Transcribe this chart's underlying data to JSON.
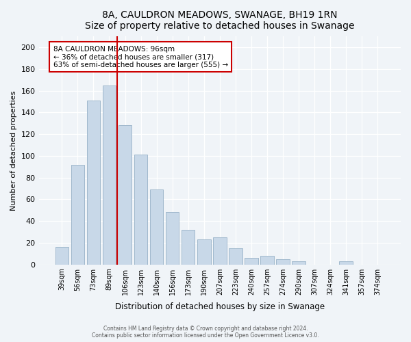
{
  "title": "8A, CAULDRON MEADOWS, SWANAGE, BH19 1RN",
  "subtitle": "Size of property relative to detached houses in Swanage",
  "xlabel": "Distribution of detached houses by size in Swanage",
  "ylabel": "Number of detached properties",
  "bar_labels": [
    "39sqm",
    "56sqm",
    "73sqm",
    "89sqm",
    "106sqm",
    "123sqm",
    "140sqm",
    "156sqm",
    "173sqm",
    "190sqm",
    "207sqm",
    "223sqm",
    "240sqm",
    "257sqm",
    "274sqm",
    "290sqm",
    "307sqm",
    "324sqm",
    "341sqm",
    "357sqm",
    "374sqm"
  ],
  "bar_values": [
    16,
    92,
    151,
    165,
    128,
    101,
    69,
    48,
    32,
    23,
    25,
    15,
    6,
    8,
    5,
    3,
    0,
    0,
    3,
    0,
    0
  ],
  "bar_color": "#c8d8e8",
  "bar_edge_color": "#a0b8cc",
  "vline_color": "#cc0000",
  "vline_x": 3.5,
  "annotation_title": "8A CAULDRON MEADOWS: 96sqm",
  "annotation_line1": "← 36% of detached houses are smaller (317)",
  "annotation_line2": "63% of semi-detached houses are larger (555) →",
  "annotation_box_color": "#ffffff",
  "annotation_box_edge": "#cc0000",
  "ylim": [
    0,
    210
  ],
  "yticks": [
    0,
    20,
    40,
    60,
    80,
    100,
    120,
    140,
    160,
    180,
    200
  ],
  "footer1": "Contains HM Land Registry data © Crown copyright and database right 2024.",
  "footer2": "Contains public sector information licensed under the Open Government Licence v3.0.",
  "bg_color": "#f0f4f8"
}
